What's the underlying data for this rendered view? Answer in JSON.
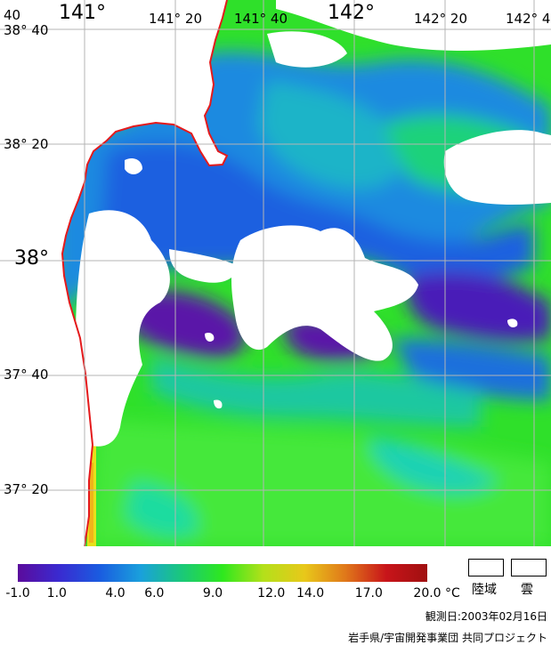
{
  "map": {
    "colors": {
      "land": "#ffffff",
      "cloud": "#ffffff",
      "coastline": "#e41a1c",
      "grid": "#b4b4b4"
    },
    "grid_labels": {
      "lon_40_left": "40",
      "lon_141": "141°",
      "lon_141_20": "141° 20",
      "lon_141_40": "141° 40",
      "lon_142": "142°",
      "lon_142_20": "142° 20",
      "lon_142_40": "142° 4",
      "lat_38_40": "38° 40",
      "lat_38_20": "38° 20",
      "lat_38": "38°",
      "lat_37_40": "37° 40",
      "lat_37_20": "37° 20"
    }
  },
  "colorbar": {
    "ticks": [
      "-1.0",
      "1.0",
      "4.0",
      "6.0",
      "9.0",
      "12.0",
      "14.0",
      "17.0",
      "20.0"
    ],
    "tick_values": [
      -1,
      1,
      4,
      6,
      9,
      12,
      14,
      17,
      20
    ],
    "unit": "°C",
    "range": [
      -1,
      20
    ],
    "colors": [
      "#5b0b9c",
      "#3a2ad0",
      "#1a5ce0",
      "#1aa0dc",
      "#1ac87a",
      "#2ee81e",
      "#b4e01a",
      "#e8c81a",
      "#e0781a",
      "#c8141a",
      "#a01010"
    ]
  },
  "legend": {
    "land_label": "陸域",
    "cloud_label": "雲"
  },
  "footer": {
    "observation_date": "観測日:2003年02月16日",
    "credit": "岩手県/宇宙開発事業団 共同プロジェクト"
  }
}
